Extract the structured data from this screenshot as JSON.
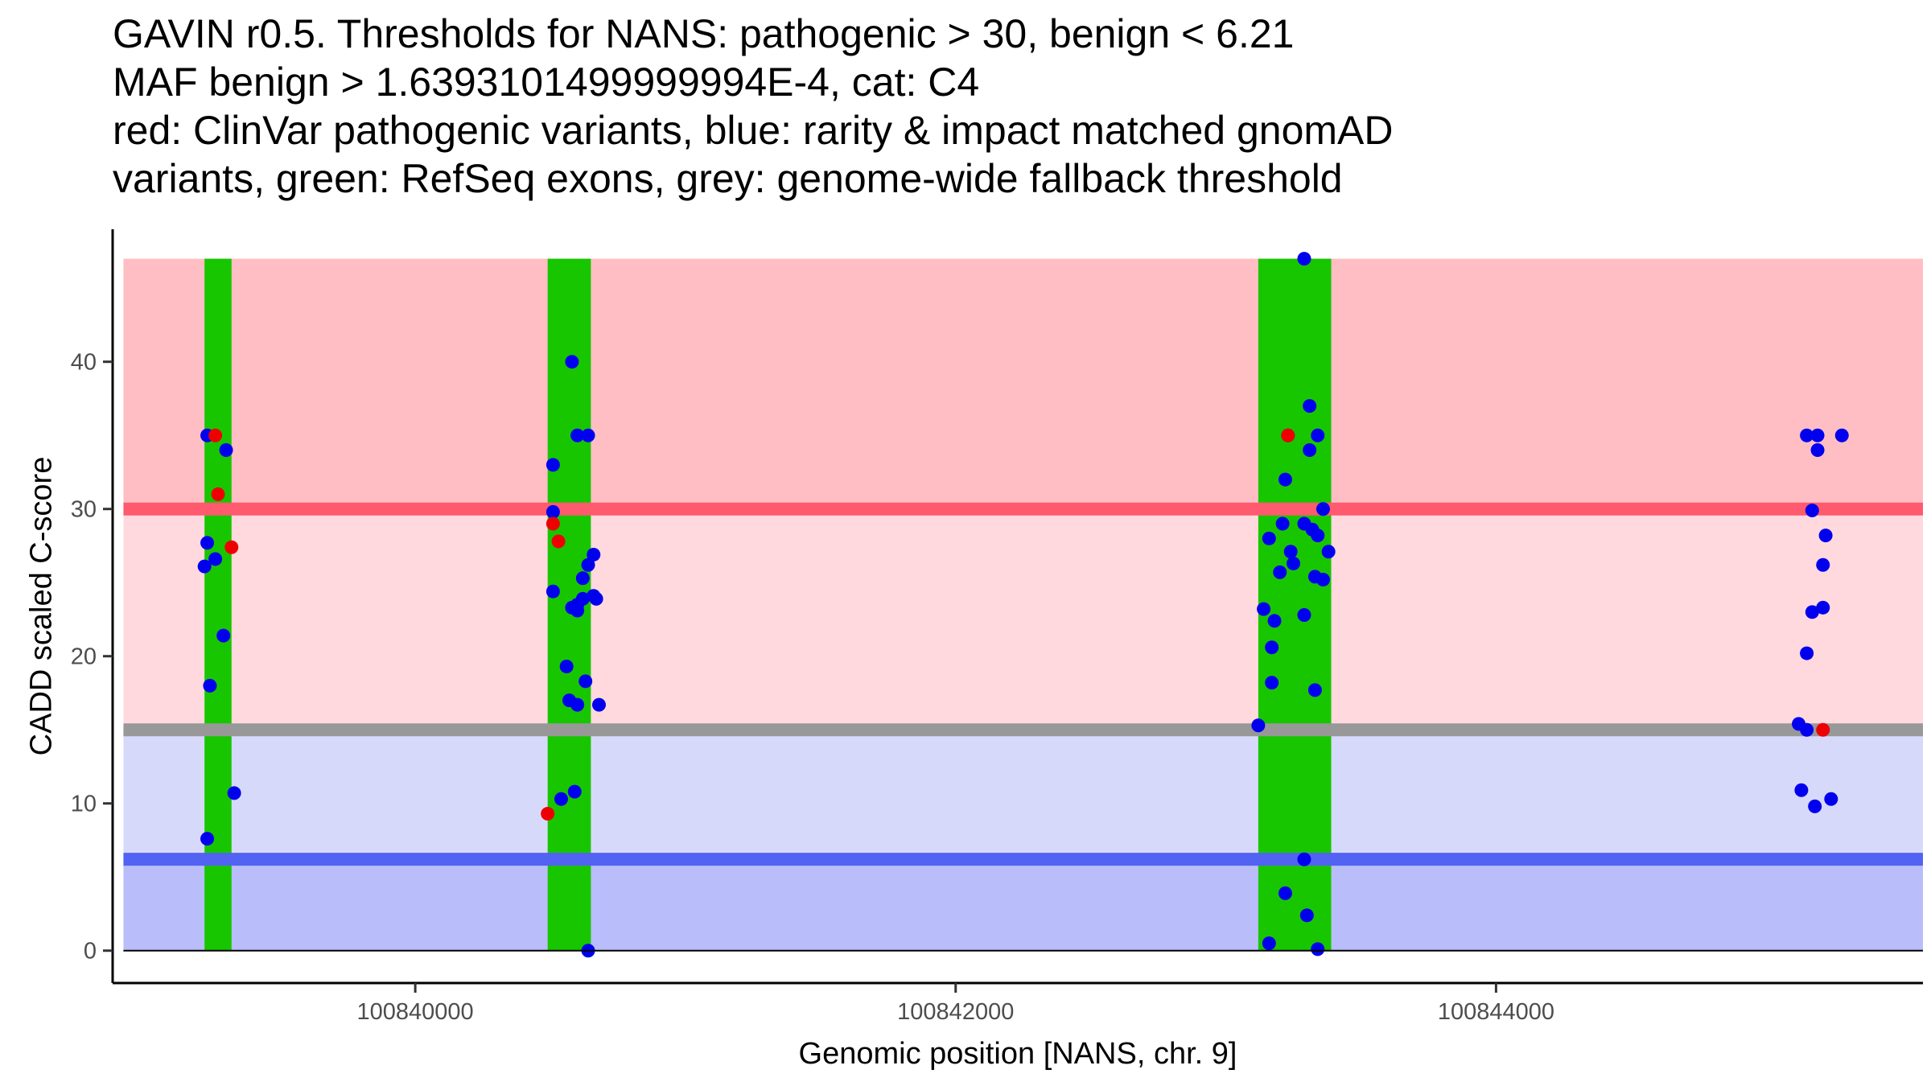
{
  "chart_data": {
    "type": "scatter",
    "title_lines": [
      "GAVIN r0.5. Thresholds for NANS: pathogenic > 30, benign < 6.21",
      "MAF benign > 1.6393101499999994E-4, cat: C4",
      "red: ClinVar pathogenic variants, blue: rarity & impact matched gnomAD",
      "variants, green: RefSeq exons, grey: genome-wide fallback threshold"
    ],
    "xlabel": "Genomic position [NANS, chr. 9]",
    "ylabel": "CADD scaled C-score",
    "xlim": [
      100838880,
      100845580
    ],
    "ylim": [
      -2.2,
      49.0
    ],
    "x_ticks": [
      {
        "value": 100840000,
        "label": "100840000"
      },
      {
        "value": 100842000,
        "label": "100842000"
      },
      {
        "value": 100844000,
        "label": "100844000"
      }
    ],
    "y_ticks": [
      {
        "value": 0,
        "label": "0"
      },
      {
        "value": 10,
        "label": "10"
      },
      {
        "value": 20,
        "label": "20"
      },
      {
        "value": 30,
        "label": "30"
      },
      {
        "value": 40,
        "label": "40"
      }
    ],
    "x_range": [
      100838920,
      100845580
    ],
    "y_top": 47,
    "thresholds": {
      "pathogenic": 30,
      "benign": 6.21,
      "fallback": 15
    },
    "colors": {
      "pathogenic_zone": "#ffbec3",
      "above_fallback_zone": "#ffd9dd",
      "below_fallback_zone": "#d7d9fb",
      "benign_zone": "#b9bdf9",
      "pathogenic_line": "#ff5a6e",
      "fallback_line": "#989898",
      "benign_line": "#5262f2",
      "exon": "#18c600",
      "clinvar": "#ee0000",
      "gnomad": "#0000ee",
      "axis": "#000000"
    },
    "exons": [
      [
        100839220,
        100839320
      ],
      [
        100840490,
        100840650
      ],
      [
        100843120,
        100843390
      ]
    ],
    "series": [
      {
        "name": "ClinVar pathogenic variants",
        "color": "#ee0000",
        "points": [
          [
            100839260,
            35.0
          ],
          [
            100839270,
            31.0
          ],
          [
            100839320,
            27.4
          ],
          [
            100840510,
            29.0
          ],
          [
            100840530,
            27.8
          ],
          [
            100840490,
            9.3
          ],
          [
            100843230,
            35.0
          ],
          [
            100845210,
            15.0
          ]
        ]
      },
      {
        "name": "rarity & impact matched gnomAD variants",
        "color": "#0000ee",
        "points": [
          [
            100839230,
            35.0
          ],
          [
            100839300,
            34.0
          ],
          [
            100839230,
            27.7
          ],
          [
            100839220,
            26.1
          ],
          [
            100839260,
            26.6
          ],
          [
            100839290,
            21.4
          ],
          [
            100839240,
            18.0
          ],
          [
            100839330,
            10.7
          ],
          [
            100839230,
            7.6
          ],
          [
            100840580,
            40.0
          ],
          [
            100840600,
            35.0
          ],
          [
            100840640,
            35.0
          ],
          [
            100840510,
            33.0
          ],
          [
            100840510,
            29.8
          ],
          [
            100840660,
            26.9
          ],
          [
            100840640,
            26.2
          ],
          [
            100840620,
            25.3
          ],
          [
            100840510,
            24.4
          ],
          [
            100840660,
            24.1
          ],
          [
            100840670,
            23.9
          ],
          [
            100840580,
            23.3
          ],
          [
            100840600,
            23.1
          ],
          [
            100840620,
            23.9
          ],
          [
            100840600,
            23.5
          ],
          [
            100840560,
            19.3
          ],
          [
            100840630,
            18.3
          ],
          [
            100840570,
            17.0
          ],
          [
            100840600,
            16.7
          ],
          [
            100840680,
            16.7
          ],
          [
            100840590,
            10.8
          ],
          [
            100840540,
            10.3
          ],
          [
            100840640,
            0.0
          ],
          [
            100843230,
            35.0
          ],
          [
            100843310,
            37.0
          ],
          [
            100843340,
            35.0
          ],
          [
            100843310,
            34.0
          ],
          [
            100843220,
            32.0
          ],
          [
            100843360,
            30.0
          ],
          [
            100843210,
            29.0
          ],
          [
            100843290,
            29.0
          ],
          [
            100843320,
            28.6
          ],
          [
            100843340,
            28.2
          ],
          [
            100843160,
            28.0
          ],
          [
            100843240,
            27.1
          ],
          [
            100843380,
            27.1
          ],
          [
            100843250,
            26.3
          ],
          [
            100843200,
            25.7
          ],
          [
            100843330,
            25.4
          ],
          [
            100843360,
            25.2
          ],
          [
            100843140,
            23.2
          ],
          [
            100843290,
            22.8
          ],
          [
            100843180,
            22.4
          ],
          [
            100843170,
            20.6
          ],
          [
            100843170,
            18.2
          ],
          [
            100843330,
            17.7
          ],
          [
            100843120,
            15.3
          ],
          [
            100843290,
            6.2
          ],
          [
            100843220,
            3.9
          ],
          [
            100843300,
            2.4
          ],
          [
            100843160,
            0.5
          ],
          [
            100843340,
            0.1
          ],
          [
            100843290,
            47.0
          ],
          [
            100845150,
            35.0
          ],
          [
            100845190,
            35.0
          ],
          [
            100845280,
            35.0
          ],
          [
            100845190,
            34.0
          ],
          [
            100845170,
            29.9
          ],
          [
            100845220,
            28.2
          ],
          [
            100845210,
            26.2
          ],
          [
            100845210,
            23.3
          ],
          [
            100845170,
            23.0
          ],
          [
            100845150,
            20.2
          ],
          [
            100845120,
            15.4
          ],
          [
            100845150,
            15.0
          ],
          [
            100845130,
            10.9
          ],
          [
            100845240,
            10.3
          ],
          [
            100845180,
            9.8
          ]
        ]
      }
    ]
  }
}
